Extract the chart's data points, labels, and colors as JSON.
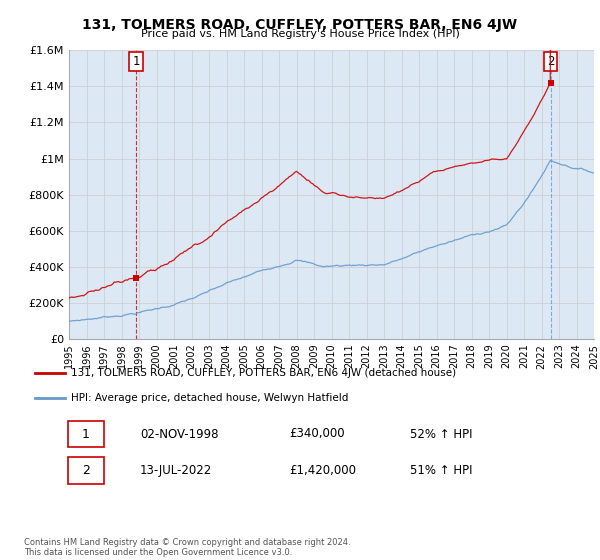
{
  "title": "131, TOLMERS ROAD, CUFFLEY, POTTERS BAR, EN6 4JW",
  "subtitle": "Price paid vs. HM Land Registry's House Price Index (HPI)",
  "ylim": [
    0,
    1600000
  ],
  "yticks": [
    0,
    200000,
    400000,
    600000,
    800000,
    1000000,
    1200000,
    1400000,
    1600000
  ],
  "ytick_labels": [
    "£0",
    "£200K",
    "£400K",
    "£600K",
    "£800K",
    "£1M",
    "£1.2M",
    "£1.4M",
    "£1.6M"
  ],
  "x_start_year": 1995,
  "x_end_year": 2025,
  "red_color": "#cc0000",
  "blue_color": "#6699cc",
  "grid_color": "#cccccc",
  "chart_bg_color": "#dce9f5",
  "bg_color": "#ffffff",
  "sale1_year": 1998.83,
  "sale1_price": 340000,
  "sale1_label": "1",
  "sale2_year": 2022.53,
  "sale2_price": 1420000,
  "sale2_label": "2",
  "legend_line1": "131, TOLMERS ROAD, CUFFLEY, POTTERS BAR, EN6 4JW (detached house)",
  "legend_line2": "HPI: Average price, detached house, Welwyn Hatfield",
  "table_row1_num": "1",
  "table_row1_date": "02-NOV-1998",
  "table_row1_price": "£340,000",
  "table_row1_hpi": "52% ↑ HPI",
  "table_row2_num": "2",
  "table_row2_date": "13-JUL-2022",
  "table_row2_price": "£1,420,000",
  "table_row2_hpi": "51% ↑ HPI",
  "footnote": "Contains HM Land Registry data © Crown copyright and database right 2024.\nThis data is licensed under the Open Government Licence v3.0."
}
